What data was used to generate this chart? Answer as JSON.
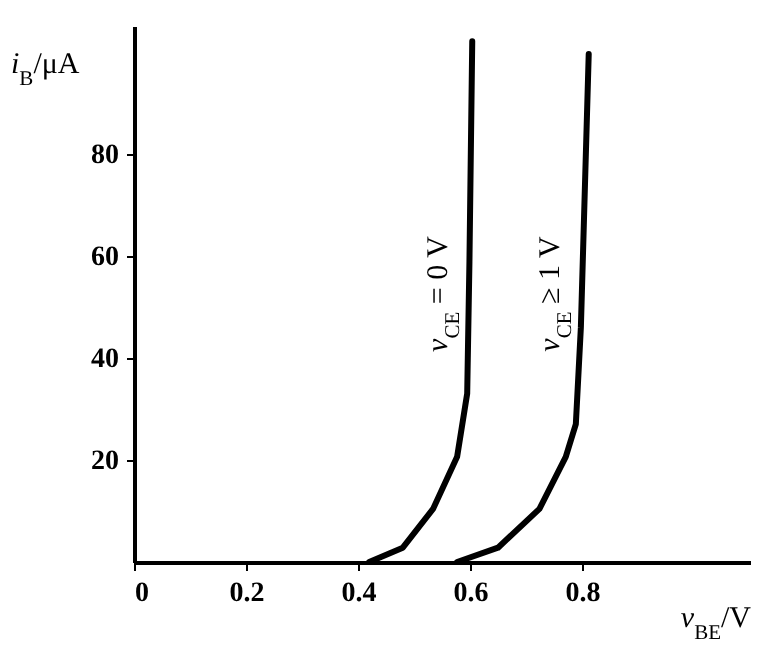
{
  "chart_data": {
    "type": "line",
    "xlabel": "v$_{BE}$/V",
    "ylabel": "i$_{B}$/μA",
    "xlim": [
      0,
      1.1
    ],
    "ylim": [
      0,
      105
    ],
    "xticks": [
      {
        "value": 0,
        "label": "0"
      },
      0.2,
      0.4,
      0.6,
      0.8
    ],
    "yticks": [
      20,
      40,
      60,
      80
    ],
    "grid": false,
    "marker": "none",
    "line_style": "solid",
    "series": [
      {
        "name": "v$_{CE}$ = 0 V",
        "color": "#000000",
        "x": [
          0.42,
          0.48,
          0.534,
          0.577,
          0.595,
          0.599,
          0.604
        ],
        "values": [
          0,
          2.8,
          10.4,
          20.6,
          33,
          58.8,
          102
        ]
      },
      {
        "name": "v$_{CE}$ ≥ 1 V",
        "color": "#000000",
        "x": [
          0.577,
          0.65,
          0.724,
          0.771,
          0.789,
          0.798,
          0.812
        ],
        "values": [
          0,
          2.8,
          10.4,
          20.6,
          27,
          46,
          99.5
        ]
      }
    ]
  }
}
